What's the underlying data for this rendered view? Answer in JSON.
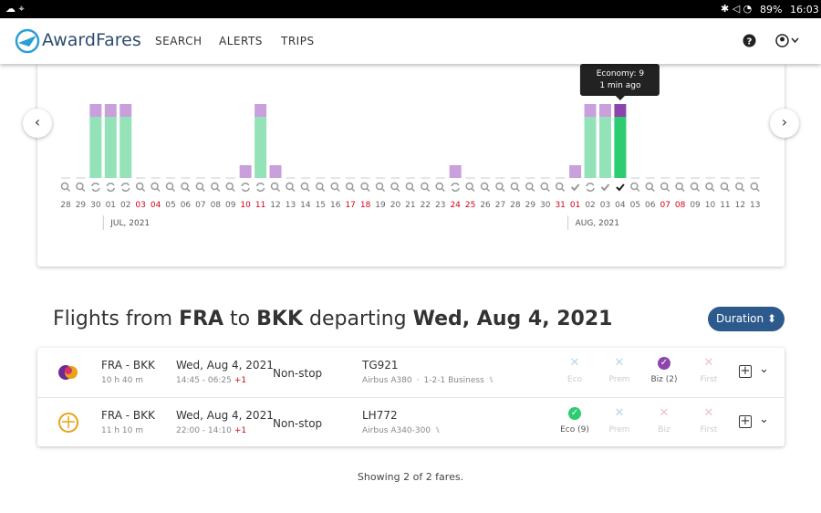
{
  "status_bar": {
    "battery": "89%",
    "time": "16:03"
  },
  "nav": {
    "brand": "AwardFares",
    "links": [
      "SEARCH",
      "ALERTS",
      "TRIPS"
    ]
  },
  "calendar": {
    "days": [
      "28",
      "29",
      "30",
      "01",
      "02",
      "03",
      "04",
      "05",
      "06",
      "07",
      "08",
      "09",
      "10",
      "11",
      "12",
      "13",
      "14",
      "15",
      "16",
      "17",
      "18",
      "19",
      "20",
      "21",
      "22",
      "23",
      "24",
      "25",
      "26",
      "27",
      "28",
      "29",
      "30",
      "31",
      "01",
      "02",
      "03",
      "04",
      "05",
      "06",
      "07",
      "08",
      "09",
      "10",
      "11",
      "12",
      "13"
    ],
    "red": [
      false,
      false,
      false,
      false,
      false,
      true,
      true,
      false,
      false,
      false,
      false,
      false,
      true,
      true,
      false,
      false,
      false,
      false,
      false,
      true,
      true,
      false,
      false,
      false,
      false,
      false,
      true,
      true,
      false,
      false,
      false,
      false,
      false,
      true,
      true,
      false,
      false,
      false,
      false,
      false,
      true,
      true,
      false,
      false,
      false,
      false,
      false
    ],
    "icons": [
      "search",
      "search",
      "refresh",
      "refresh",
      "refresh",
      "search",
      "search",
      "search",
      "search",
      "search",
      "search",
      "search",
      "refresh",
      "refresh",
      "search",
      "search",
      "search",
      "search",
      "search",
      "search",
      "search",
      "search",
      "search",
      "search",
      "search",
      "search",
      "refresh",
      "search",
      "search",
      "search",
      "search",
      "search",
      "search",
      "search",
      "check",
      "refresh",
      "check",
      "selected",
      "search",
      "search",
      "search",
      "search",
      "search",
      "search",
      "search",
      "search",
      "search"
    ],
    "bars": [
      "none",
      "none",
      "tall",
      "tall",
      "tall",
      "none",
      "none",
      "none",
      "none",
      "none",
      "none",
      "none",
      "small",
      "tall",
      "small",
      "none",
      "none",
      "none",
      "none",
      "none",
      "none",
      "none",
      "none",
      "none",
      "none",
      "none",
      "small",
      "none",
      "none",
      "none",
      "none",
      "none",
      "none",
      "none",
      "small",
      "tall",
      "tall",
      "selected",
      "none",
      "none",
      "none",
      "none",
      "none",
      "none",
      "none",
      "none",
      "none"
    ],
    "months": [
      "JUL, 2021",
      "AUG, 2021"
    ],
    "tooltip": [
      "Economy: 9",
      "1 min ago"
    ]
  },
  "heading": [
    {
      "text": "Flights from ",
      "bold": false
    },
    {
      "text": "FRA",
      "bold": true
    },
    {
      "text": " to ",
      "bold": false
    },
    {
      "text": "BKK",
      "bold": true
    },
    {
      "text": " departing ",
      "bold": false
    },
    {
      "text": "Wed, Aug 4, 2021",
      "bold": true
    }
  ],
  "sort_button": "Duration",
  "flights": [
    {
      "airline": "thai",
      "route": "FRA - BKK",
      "duration": "10 h 40 m",
      "date": "Wed, Aug 4, 2021",
      "times": "14:45 - 06:25",
      "day_offset": "+1",
      "stops": "Non-stop",
      "flight": "TG921",
      "aircraft": "Airbus A380",
      "cabin": "1-2-1 Business",
      "classes": [
        {
          "label": "Eco",
          "status": "unavailable"
        },
        {
          "label": "Prem",
          "status": "unavailable"
        },
        {
          "label": "Biz (2)",
          "status": "available"
        },
        {
          "label": "First",
          "status": "unavailable"
        }
      ]
    },
    {
      "airline": "lufthansa",
      "route": "FRA - BKK",
      "duration": "11 h 10 m",
      "date": "Wed, Aug 4, 2021",
      "times": "22:00 - 14:10",
      "day_offset": "+1",
      "stops": "Non-stop",
      "flight": "LH772",
      "aircraft": "Airbus A340-300",
      "classes": [
        {
          "label": "Eco (9)",
          "status": "available"
        },
        {
          "label": "Prem",
          "status": "unavailable"
        },
        {
          "label": "Biz",
          "status": "unavailable"
        },
        {
          "label": "First",
          "status": "unavailable"
        }
      ]
    }
  ],
  "footer": "Showing 2 of 2 fares."
}
